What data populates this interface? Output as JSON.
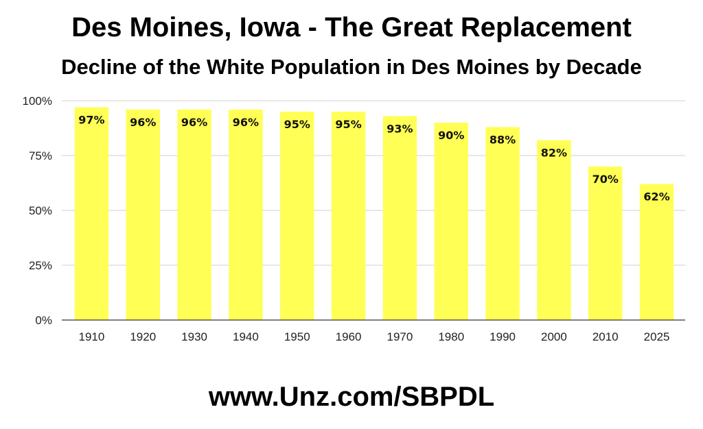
{
  "header": {
    "title": "Des Moines, Iowa - The Great Replacement",
    "subtitle": "Decline of the White Population in Des Moines by Decade"
  },
  "footer": {
    "text": "www.Unz.com/SBPDL"
  },
  "colors": {
    "bar": "#ffff55",
    "grid": "#cfcfcf",
    "axis": "#333333"
  },
  "chart_data": {
    "type": "bar",
    "title": "Decline of the White Population in Des Moines by Decade",
    "categories": [
      "1910",
      "1920",
      "1930",
      "1940",
      "1950",
      "1960",
      "1970",
      "1980",
      "1990",
      "2000",
      "2010",
      "2025"
    ],
    "values": [
      97,
      96,
      96,
      96,
      95,
      95,
      93,
      90,
      88,
      82,
      70,
      62
    ],
    "data_labels": [
      "97%",
      "96%",
      "96%",
      "96%",
      "95%",
      "95%",
      "93%",
      "90%",
      "88%",
      "82%",
      "70%",
      "62%"
    ],
    "ylim": [
      0,
      100
    ],
    "yticks": [
      0,
      25,
      50,
      75,
      100
    ],
    "ytick_labels": [
      "0%",
      "25%",
      "50%",
      "75%",
      "100%"
    ],
    "grid": true,
    "xlabel": "",
    "ylabel": ""
  }
}
